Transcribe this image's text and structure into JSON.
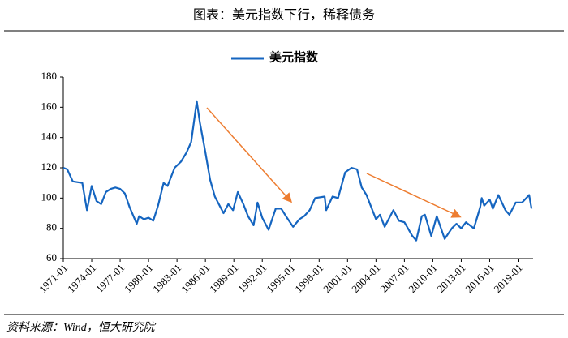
{
  "chart_data": {
    "type": "line",
    "title": "图表：美元指数下行，稀释债务",
    "source": "资料来源：Wind，恒大研究院",
    "x": [
      "1971-01",
      "1971-06",
      "1972-01",
      "1973-01",
      "1973-07",
      "1974-01",
      "1974-07",
      "1975-01",
      "1975-07",
      "1976-01",
      "1976-07",
      "1977-01",
      "1977-07",
      "1978-01",
      "1978-10",
      "1979-01",
      "1979-07",
      "1980-01",
      "1980-07",
      "1981-01",
      "1981-08",
      "1982-01",
      "1982-10",
      "1983-06",
      "1984-01",
      "1984-07",
      "1985-02",
      "1985-06",
      "1986-01",
      "1986-07",
      "1987-01",
      "1987-12",
      "1988-06",
      "1988-12",
      "1989-06",
      "1990-01",
      "1990-07",
      "1991-02",
      "1991-07",
      "1992-01",
      "1992-09",
      "1993-06",
      "1994-01",
      "1994-07",
      "1995-04",
      "1995-12",
      "1996-06",
      "1997-01",
      "1997-08",
      "1998-08",
      "1998-10",
      "1999-06",
      "2000-01",
      "2000-10",
      "2001-06",
      "2002-01",
      "2002-07",
      "2003-01",
      "2003-07",
      "2004-01",
      "2004-06",
      "2004-12",
      "2005-11",
      "2006-06",
      "2007-01",
      "2007-11",
      "2008-04",
      "2008-11",
      "2009-03",
      "2009-11",
      "2010-06",
      "2011-04",
      "2012-01",
      "2012-07",
      "2013-01",
      "2013-07",
      "2014-05",
      "2015-01",
      "2015-03",
      "2015-06",
      "2016-01",
      "2016-05",
      "2016-12",
      "2017-09",
      "2018-02",
      "2018-10",
      "2019-06",
      "2020-03",
      "2020-06"
    ],
    "series": [
      {
        "name": "美元指数",
        "color": "#1565c0",
        "values": [
          120,
          119,
          111,
          110,
          92,
          108,
          98,
          96,
          104,
          106,
          107,
          106,
          103,
          94,
          83,
          88,
          86,
          87,
          85,
          95,
          110,
          108,
          120,
          124,
          130,
          137,
          164,
          150,
          130,
          112,
          101,
          90,
          96,
          92,
          104,
          96,
          88,
          82,
          97,
          87,
          79,
          93,
          93,
          88,
          81,
          86,
          88,
          92,
          100,
          101,
          92,
          101,
          100,
          117,
          120,
          119,
          107,
          102,
          94,
          86,
          89,
          81,
          92,
          85,
          84,
          75,
          72,
          88,
          89,
          75,
          88,
          73,
          80,
          83,
          80,
          84,
          80,
          94,
          100,
          95,
          99,
          93,
          102,
          92,
          89,
          97,
          97,
          102,
          93
        ]
      }
    ],
    "xlim": [
      "1971-01",
      "2020-08"
    ],
    "xticks": [
      "1971-01",
      "1974-01",
      "1977-01",
      "1980-01",
      "1983-01",
      "1986-01",
      "1989-01",
      "1992-01",
      "1995-01",
      "1998-01",
      "2001-01",
      "2004-01",
      "2007-01",
      "2010-01",
      "2013-01",
      "2016-01",
      "2019-01"
    ],
    "ylim": [
      60,
      180
    ],
    "yticks": [
      60,
      80,
      100,
      120,
      140,
      160,
      180
    ],
    "legend": "top"
  }
}
